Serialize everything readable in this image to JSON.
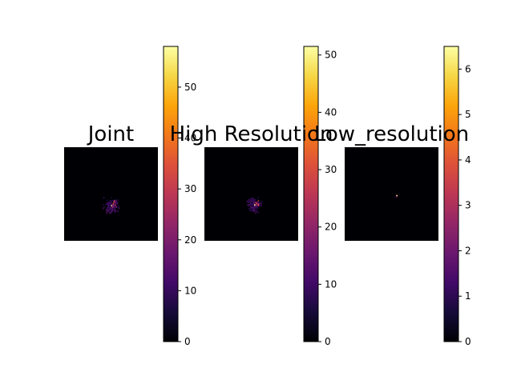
{
  "chart_data": [
    {
      "type": "heatmap",
      "title": "Joint",
      "colormap": "inferno",
      "colorbar": {
        "vmin": 0,
        "vmax": 58,
        "ticks": [
          0,
          10,
          20,
          30,
          40,
          50
        ]
      },
      "blobs": [
        {
          "x": 0.5,
          "y": 0.62,
          "value": 58,
          "spread": 0.025,
          "count": 1
        },
        {
          "x": 0.52,
          "y": 0.6,
          "value": 40,
          "spread": 0.05,
          "count": 12
        },
        {
          "x": 0.5,
          "y": 0.62,
          "value": 16,
          "spread": 0.1,
          "count": 140
        }
      ]
    },
    {
      "type": "heatmap",
      "title": "High Resolution",
      "colormap": "inferno",
      "colorbar": {
        "vmin": 0,
        "vmax": 51.5,
        "ticks": [
          0,
          10,
          20,
          30,
          40,
          50
        ]
      },
      "blobs": [
        {
          "x": 0.53,
          "y": 0.61,
          "value": 51,
          "spread": 0.025,
          "count": 1
        },
        {
          "x": 0.54,
          "y": 0.6,
          "value": 36,
          "spread": 0.05,
          "count": 12
        },
        {
          "x": 0.52,
          "y": 0.61,
          "value": 14,
          "spread": 0.1,
          "count": 140
        }
      ]
    },
    {
      "type": "heatmap",
      "title": "Low_resolution",
      "colormap": "inferno",
      "colorbar": {
        "vmin": 0,
        "vmax": 6.5,
        "ticks": [
          0,
          1,
          2,
          3,
          4,
          5,
          6
        ]
      },
      "blobs": [
        {
          "x": 0.55,
          "y": 0.51,
          "value": 6.4,
          "spread": 0.005,
          "count": 1
        },
        {
          "x": 0.55,
          "y": 0.52,
          "value": 3.0,
          "spread": 0.01,
          "count": 3
        }
      ]
    }
  ]
}
